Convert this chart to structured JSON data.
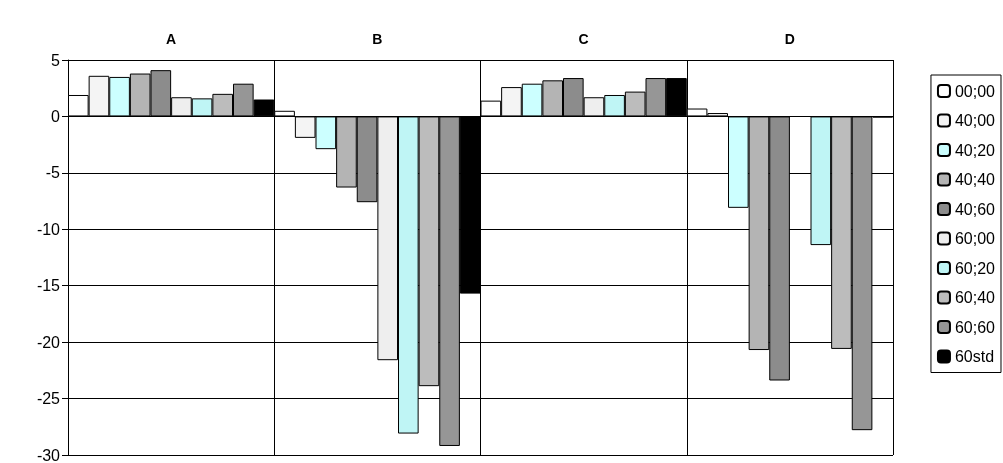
{
  "chart_data": {
    "type": "bar",
    "categories": [
      "A",
      "B",
      "C",
      "D"
    ],
    "series": [
      {
        "name": "00;00",
        "color": "#ffffff",
        "values": [
          1.9,
          0.5,
          1.4,
          0.7
        ]
      },
      {
        "name": "40;00",
        "color": "#f4f4f4",
        "values": [
          3.6,
          -1.9,
          2.6,
          0.3
        ]
      },
      {
        "name": "40;20",
        "color": "#ccffff",
        "values": [
          3.5,
          -2.9,
          2.9,
          -8.1
        ]
      },
      {
        "name": "40;40",
        "color": "#b4b4b4",
        "values": [
          3.8,
          -6.3,
          3.2,
          -20.7
        ]
      },
      {
        "name": "40;60",
        "color": "#8c8c8c",
        "values": [
          4.1,
          -7.6,
          3.4,
          -23.4
        ]
      },
      {
        "name": "60;00",
        "color": "#eeeeee",
        "values": [
          1.7,
          -21.6,
          1.7,
          null
        ]
      },
      {
        "name": "60;20",
        "color": "#bff5f5",
        "values": [
          1.6,
          -28.1,
          1.9,
          -11.4
        ]
      },
      {
        "name": "60;40",
        "color": "#bcbcbc",
        "values": [
          2.0,
          -23.9,
          2.2,
          -20.6
        ]
      },
      {
        "name": "60;60",
        "color": "#969696",
        "values": [
          2.9,
          -29.2,
          3.4,
          -27.8
        ]
      },
      {
        "name": "60std",
        "color": "#000000",
        "values": [
          1.5,
          -15.7,
          3.4,
          -0.1
        ]
      }
    ],
    "ylim": [
      -30,
      5
    ],
    "yticks": [
      -30,
      -25,
      -20,
      -15,
      -10,
      -5,
      0,
      5
    ],
    "grid": true,
    "legend": "right"
  }
}
